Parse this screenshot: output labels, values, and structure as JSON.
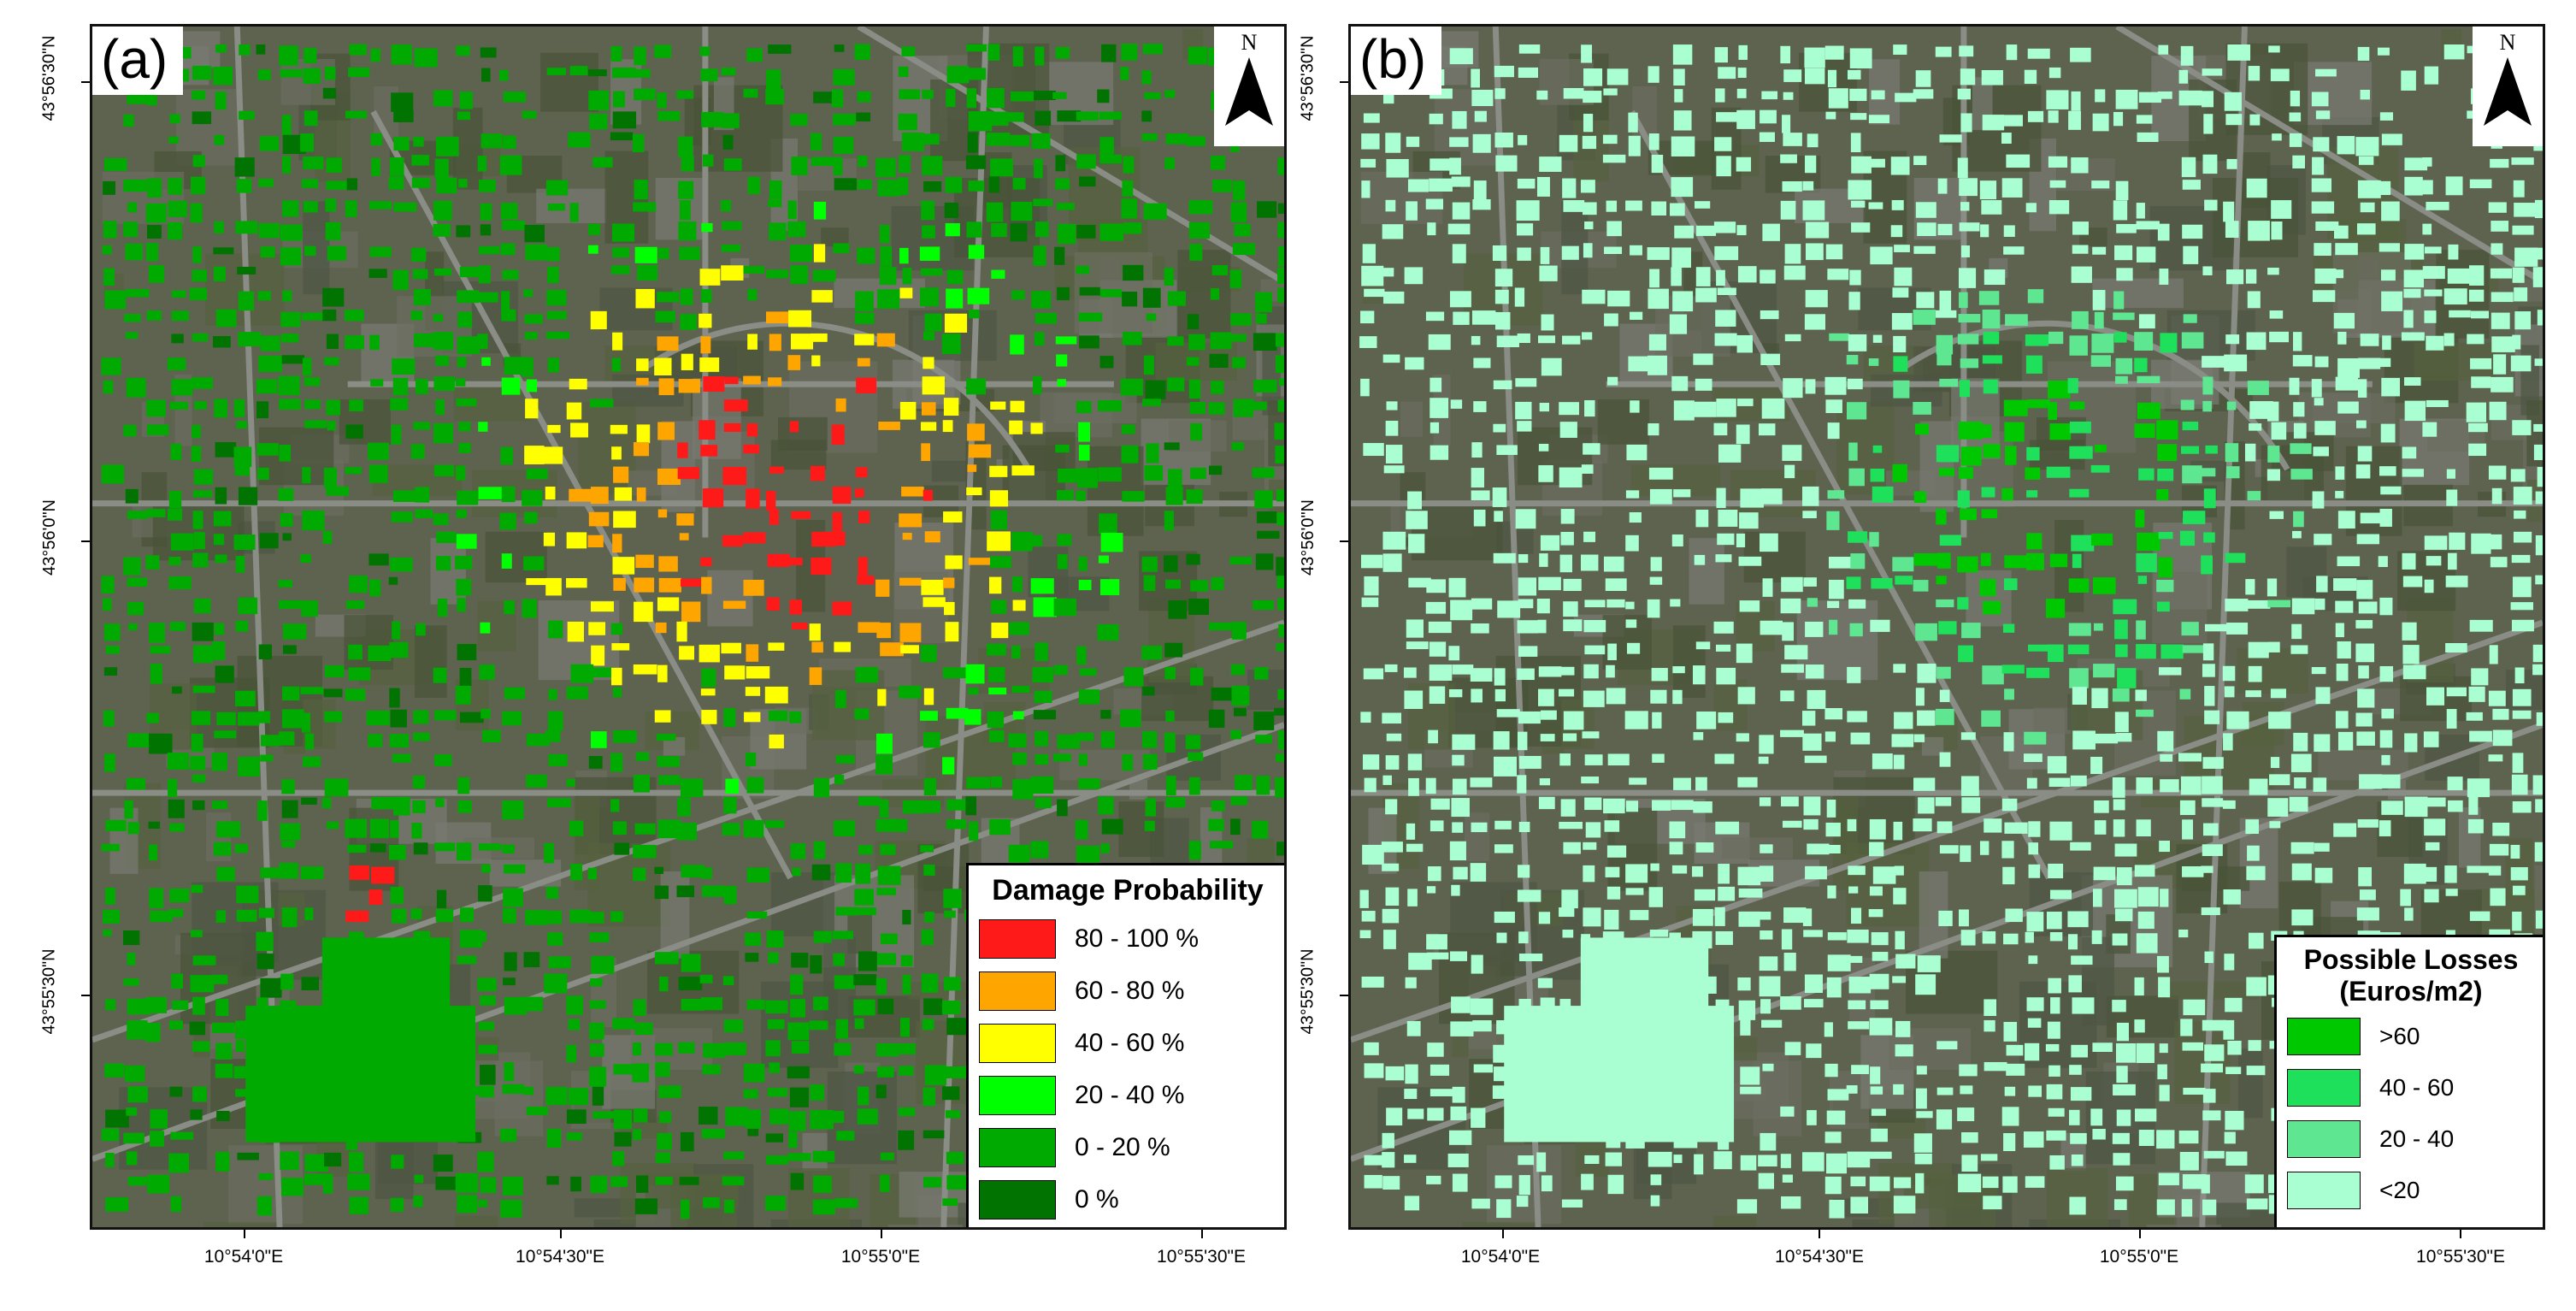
{
  "panels": [
    {
      "label": "(a)",
      "north_label": "N",
      "legend": {
        "title": "Damage Probability",
        "items": [
          {
            "label": "80 - 100 %",
            "color": "#ff1a1a"
          },
          {
            "label": "60 - 80 %",
            "color": "#ffa500"
          },
          {
            "label": "40 - 60 %",
            "color": "#ffff00"
          },
          {
            "label": "20 - 40 %",
            "color": "#00ff00"
          },
          {
            "label": "0 - 20 %",
            "color": "#00aa00"
          },
          {
            "label": "0 %",
            "color": "#007300"
          }
        ]
      }
    },
    {
      "label": "(b)",
      "north_label": "N",
      "legend": {
        "title_line1": "Possible Losses",
        "title_line2": "(Euros/m2)",
        "items": [
          {
            "label": ">60",
            "color": "#00c800"
          },
          {
            "label": "40 - 60",
            "color": "#1ee05a"
          },
          {
            "label": "20 - 40",
            "color": "#5ee690"
          },
          {
            "label": "<20",
            "color": "#aaffd2"
          }
        ]
      }
    }
  ],
  "axes": {
    "lat_labels": [
      "43°56'30\"N",
      "43°56'0\"N",
      "43°55'30\"N"
    ],
    "lon_labels": [
      "10°54'0\"E",
      "10°54'30\"E",
      "10°55'0\"E",
      "10°55'30\"E"
    ]
  },
  "colors": {
    "imagery_base": "#5e6350",
    "road": "#8a8c86",
    "building_default_a": "#14a014",
    "building_default_b": "#aaffd2"
  }
}
